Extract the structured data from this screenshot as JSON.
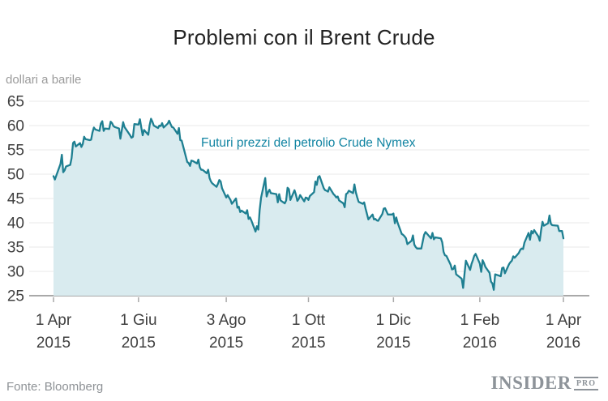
{
  "header": {
    "title": "Problemi con il Brent Crude"
  },
  "footer": {
    "source": "Fonte: Bloomberg",
    "logo_main": "INSIDER",
    "logo_sub": "PRO"
  },
  "chart_data": {
    "type": "area",
    "title": "Problemi con il Brent Crude",
    "ylabel": "dollari a barile",
    "xlabel": "",
    "annotation": "Futuri prezzi del petrolio Crude Nymex",
    "legend_position": "none",
    "grid": "horizontal",
    "ylim": [
      25,
      65
    ],
    "xlim_days": [
      0,
      366
    ],
    "y_ticks": [
      25,
      30,
      35,
      40,
      45,
      50,
      55,
      60,
      65
    ],
    "x_ticks": [
      {
        "day": 0,
        "line1": "1 Apr",
        "line2": "2015"
      },
      {
        "day": 61,
        "line1": "1 Giu",
        "line2": "2015"
      },
      {
        "day": 124,
        "line1": "3 Ago",
        "line2": "2015"
      },
      {
        "day": 183,
        "line1": "1 Ott",
        "line2": "2015"
      },
      {
        "day": 244,
        "line1": "1 Dic",
        "line2": "2015"
      },
      {
        "day": 306,
        "line1": "1 Feb",
        "line2": "2016"
      },
      {
        "day": 366,
        "line1": "1 Apr",
        "line2": "2016"
      }
    ],
    "colors": {
      "line": "#1e7f91",
      "fill": "#d9ebef",
      "annotation": "#1184a2",
      "grid": "#e8e8e8",
      "axis": "#a9a9a9",
      "axis_text": "#3f3f3f",
      "title_text": "#232323",
      "muted_text": "#9b9b9b",
      "logo_gray": "#8d9399"
    },
    "series": [
      {
        "name": "Futuri prezzi del petrolio Crude Nymex",
        "unit": "dollari a barile",
        "points": [
          [
            0,
            49.6
          ],
          [
            1,
            48.9
          ],
          [
            5,
            52.1
          ],
          [
            6,
            54.0
          ],
          [
            7,
            50.4
          ],
          [
            8,
            50.8
          ],
          [
            9,
            51.6
          ],
          [
            12,
            51.9
          ],
          [
            13,
            53.3
          ],
          [
            14,
            56.4
          ],
          [
            15,
            56.7
          ],
          [
            16,
            55.7
          ],
          [
            19,
            56.4
          ],
          [
            20,
            55.6
          ],
          [
            21,
            56.2
          ],
          [
            22,
            57.7
          ],
          [
            23,
            57.2
          ],
          [
            26,
            57.0
          ],
          [
            27,
            57.1
          ],
          [
            28,
            58.6
          ],
          [
            29,
            59.6
          ],
          [
            30,
            59.2
          ],
          [
            33,
            58.9
          ],
          [
            34,
            60.4
          ],
          [
            35,
            60.9
          ],
          [
            36,
            58.9
          ],
          [
            37,
            59.4
          ],
          [
            40,
            59.3
          ],
          [
            41,
            60.8
          ],
          [
            42,
            60.5
          ],
          [
            43,
            59.9
          ],
          [
            44,
            59.7
          ],
          [
            47,
            59.4
          ],
          [
            48,
            57.3
          ],
          [
            49,
            59.0
          ],
          [
            50,
            60.7
          ],
          [
            51,
            59.7
          ],
          [
            55,
            58.0
          ],
          [
            56,
            57.5
          ],
          [
            57,
            57.7
          ],
          [
            58,
            60.3
          ],
          [
            61,
            60.2
          ],
          [
            62,
            61.3
          ],
          [
            63,
            59.6
          ],
          [
            64,
            58.0
          ],
          [
            65,
            59.1
          ],
          [
            68,
            58.1
          ],
          [
            69,
            60.1
          ],
          [
            70,
            61.4
          ],
          [
            71,
            60.8
          ],
          [
            72,
            60.0
          ],
          [
            75,
            59.5
          ],
          [
            76,
            60.0
          ],
          [
            77,
            59.9
          ],
          [
            78,
            60.5
          ],
          [
            79,
            59.6
          ],
          [
            82,
            60.4
          ],
          [
            83,
            61.0
          ],
          [
            84,
            60.3
          ],
          [
            85,
            59.7
          ],
          [
            86,
            59.6
          ],
          [
            89,
            58.3
          ],
          [
            90,
            59.5
          ],
          [
            91,
            57.0
          ],
          [
            92,
            56.9
          ],
          [
            96,
            52.5
          ],
          [
            97,
            52.3
          ],
          [
            98,
            51.7
          ],
          [
            99,
            52.8
          ],
          [
            100,
            52.7
          ],
          [
            103,
            52.2
          ],
          [
            104,
            53.0
          ],
          [
            105,
            51.4
          ],
          [
            106,
            50.9
          ],
          [
            107,
            50.9
          ],
          [
            110,
            50.2
          ],
          [
            111,
            50.9
          ],
          [
            112,
            49.2
          ],
          [
            113,
            48.5
          ],
          [
            114,
            48.1
          ],
          [
            117,
            47.4
          ],
          [
            118,
            48.0
          ],
          [
            119,
            48.8
          ],
          [
            120,
            48.5
          ],
          [
            121,
            47.1
          ],
          [
            124,
            45.2
          ],
          [
            125,
            45.7
          ],
          [
            126,
            45.2
          ],
          [
            127,
            44.7
          ],
          [
            128,
            43.9
          ],
          [
            131,
            45.0
          ],
          [
            132,
            43.1
          ],
          [
            133,
            43.3
          ],
          [
            134,
            42.2
          ],
          [
            135,
            42.5
          ],
          [
            138,
            41.9
          ],
          [
            139,
            42.6
          ],
          [
            140,
            40.8
          ],
          [
            141,
            41.1
          ],
          [
            142,
            40.5
          ],
          [
            145,
            38.2
          ],
          [
            146,
            39.3
          ],
          [
            147,
            38.6
          ],
          [
            148,
            42.6
          ],
          [
            149,
            45.2
          ],
          [
            152,
            49.2
          ],
          [
            153,
            45.4
          ],
          [
            154,
            46.3
          ],
          [
            155,
            46.8
          ],
          [
            156,
            46.1
          ],
          [
            160,
            45.9
          ],
          [
            161,
            44.2
          ],
          [
            162,
            45.9
          ],
          [
            163,
            44.6
          ],
          [
            166,
            44.0
          ],
          [
            167,
            44.6
          ],
          [
            168,
            47.2
          ],
          [
            169,
            46.9
          ],
          [
            170,
            44.7
          ],
          [
            173,
            46.7
          ],
          [
            174,
            45.8
          ],
          [
            175,
            44.5
          ],
          [
            176,
            44.9
          ],
          [
            177,
            45.7
          ],
          [
            180,
            44.4
          ],
          [
            181,
            45.2
          ],
          [
            182,
            45.1
          ],
          [
            183,
            44.7
          ],
          [
            184,
            45.5
          ],
          [
            187,
            46.3
          ],
          [
            188,
            48.5
          ],
          [
            189,
            47.8
          ],
          [
            190,
            49.4
          ],
          [
            191,
            49.6
          ],
          [
            194,
            47.1
          ],
          [
            195,
            46.7
          ],
          [
            196,
            46.6
          ],
          [
            197,
            46.4
          ],
          [
            198,
            47.3
          ],
          [
            201,
            45.9
          ],
          [
            202,
            45.6
          ],
          [
            203,
            45.2
          ],
          [
            204,
            45.4
          ],
          [
            205,
            44.6
          ],
          [
            208,
            44.0
          ],
          [
            209,
            43.2
          ],
          [
            210,
            45.9
          ],
          [
            211,
            46.1
          ],
          [
            212,
            46.6
          ],
          [
            215,
            46.1
          ],
          [
            216,
            47.9
          ],
          [
            217,
            46.3
          ],
          [
            218,
            45.2
          ],
          [
            219,
            44.3
          ],
          [
            222,
            43.9
          ],
          [
            223,
            44.2
          ],
          [
            224,
            42.9
          ],
          [
            225,
            41.8
          ],
          [
            226,
            40.7
          ],
          [
            229,
            41.7
          ],
          [
            230,
            40.7
          ],
          [
            231,
            40.8
          ],
          [
            232,
            40.5
          ],
          [
            233,
            40.4
          ],
          [
            236,
            41.8
          ],
          [
            237,
            42.9
          ],
          [
            238,
            43.0
          ],
          [
            240,
            41.7
          ],
          [
            243,
            41.7
          ],
          [
            244,
            41.9
          ],
          [
            245,
            39.9
          ],
          [
            246,
            41.1
          ],
          [
            247,
            40.0
          ],
          [
            250,
            37.7
          ],
          [
            251,
            37.5
          ],
          [
            252,
            37.2
          ],
          [
            253,
            36.8
          ],
          [
            254,
            35.6
          ],
          [
            257,
            36.3
          ],
          [
            258,
            37.4
          ],
          [
            259,
            35.5
          ],
          [
            260,
            35.0
          ],
          [
            261,
            34.7
          ],
          [
            264,
            34.7
          ],
          [
            265,
            36.1
          ],
          [
            266,
            37.5
          ],
          [
            267,
            38.1
          ],
          [
            271,
            36.8
          ],
          [
            272,
            37.9
          ],
          [
            273,
            36.6
          ],
          [
            274,
            37.0
          ],
          [
            278,
            36.8
          ],
          [
            279,
            36.0
          ],
          [
            280,
            34.0
          ],
          [
            281,
            33.3
          ],
          [
            282,
            33.2
          ],
          [
            285,
            31.4
          ],
          [
            286,
            30.4
          ],
          [
            287,
            30.5
          ],
          [
            288,
            31.2
          ],
          [
            289,
            29.4
          ],
          [
            293,
            28.5
          ],
          [
            294,
            26.6
          ],
          [
            295,
            29.5
          ],
          [
            296,
            32.2
          ],
          [
            299,
            30.3
          ],
          [
            300,
            31.5
          ],
          [
            301,
            32.3
          ],
          [
            302,
            33.2
          ],
          [
            303,
            33.6
          ],
          [
            306,
            31.6
          ],
          [
            307,
            29.9
          ],
          [
            308,
            32.3
          ],
          [
            309,
            31.7
          ],
          [
            310,
            30.9
          ],
          [
            313,
            29.7
          ],
          [
            314,
            27.9
          ],
          [
            315,
            27.5
          ],
          [
            316,
            26.2
          ],
          [
            317,
            29.4
          ],
          [
            321,
            29.0
          ],
          [
            322,
            30.7
          ],
          [
            323,
            30.8
          ],
          [
            324,
            29.6
          ],
          [
            327,
            31.5
          ],
          [
            328,
            31.9
          ],
          [
            329,
            32.2
          ],
          [
            330,
            33.1
          ],
          [
            331,
            32.8
          ],
          [
            334,
            33.8
          ],
          [
            335,
            34.4
          ],
          [
            336,
            34.7
          ],
          [
            337,
            34.6
          ],
          [
            338,
            35.9
          ],
          [
            341,
            37.9
          ],
          [
            342,
            36.5
          ],
          [
            343,
            38.3
          ],
          [
            344,
            37.8
          ],
          [
            345,
            38.5
          ],
          [
            348,
            37.2
          ],
          [
            349,
            36.3
          ],
          [
            350,
            38.5
          ],
          [
            351,
            40.2
          ],
          [
            352,
            39.4
          ],
          [
            355,
            39.9
          ],
          [
            356,
            41.5
          ],
          [
            357,
            39.8
          ],
          [
            358,
            39.5
          ],
          [
            362,
            39.4
          ],
          [
            363,
            38.3
          ],
          [
            364,
            38.3
          ],
          [
            365,
            38.3
          ],
          [
            366,
            36.8
          ]
        ]
      }
    ]
  }
}
